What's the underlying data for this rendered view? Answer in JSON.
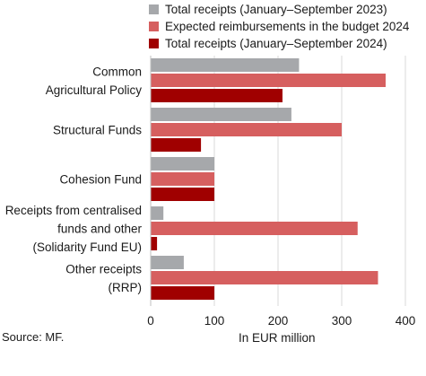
{
  "chart_data": {
    "type": "bar",
    "orientation": "horizontal",
    "categories": [
      [
        "Common",
        "Agricultural Policy"
      ],
      [
        "Structural Funds"
      ],
      [
        "Cohesion Fund"
      ],
      [
        "Receipts from centralised",
        "funds and other",
        "(Solidarity Fund EU)"
      ],
      [
        "Other receipts",
        "(RRP)"
      ]
    ],
    "series": [
      {
        "name": "Total receipts (January–September 2023)",
        "color": "#a6a8ab",
        "values": [
          233,
          221,
          100,
          20,
          52
        ]
      },
      {
        "name": "Expected reimbursements in the budget 2024",
        "color": "#d65f5f",
        "values": [
          369,
          300,
          100,
          325,
          357
        ]
      },
      {
        "name": "Total receipts (January–September 2024)",
        "color": "#a00000",
        "values": [
          207,
          79,
          100,
          10,
          100
        ]
      }
    ],
    "xlim": [
      0,
      400
    ],
    "xticks": [
      "0",
      "100",
      "200",
      "300",
      "400"
    ],
    "xlabel": "In EUR million",
    "grid": "vertical",
    "legend": "top"
  },
  "source": "Source: MF."
}
